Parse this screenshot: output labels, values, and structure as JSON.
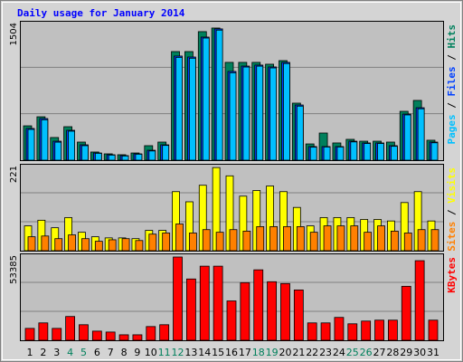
{
  "chart_data": [
    {
      "type": "bar",
      "title": "Daily usage for January 2014",
      "legend_separator": " / ",
      "ylim": [
        0,
        1586
      ],
      "yticks": [
        1504
      ],
      "series": [
        {
          "name": "Hits",
          "color": "#00805c",
          "values": [
            391,
            494,
            258,
            381,
            206,
            93,
            72,
            62,
            82,
            165,
            206,
            1236,
            1236,
            1463,
            1504,
            1113,
            1113,
            1113,
            1092,
            1133,
            649,
            185,
            309,
            196,
            237,
            216,
            216,
            206,
            556,
            680,
            227
          ]
        },
        {
          "name": "Files",
          "color": "#0040ff",
          "values": [
            361,
            474,
            216,
            340,
            175,
            82,
            62,
            52,
            72,
            113,
            175,
            1185,
            1174,
            1401,
            1494,
            1010,
            1071,
            1082,
            1061,
            1113,
            628,
            155,
            155,
            155,
            216,
            196,
            196,
            165,
            525,
            597,
            206
          ]
        },
        {
          "name": "Pages",
          "color": "#00c0ff",
          "values": [
            350,
            460,
            205,
            330,
            165,
            78,
            58,
            48,
            68,
            105,
            168,
            1170,
            1160,
            1390,
            1480,
            995,
            1060,
            1070,
            1050,
            1100,
            615,
            148,
            150,
            150,
            208,
            190,
            190,
            158,
            515,
            585,
            198
          ]
        }
      ]
    },
    {
      "type": "bar",
      "legend_separator": " / ",
      "ylim": [
        0,
        231
      ],
      "yticks": [
        221
      ],
      "series": [
        {
          "name": "Visits",
          "color": "#ffff00",
          "values": [
            66,
            81,
            61,
            88,
            49,
            37,
            34,
            34,
            32,
            54,
            54,
            157,
            130,
            174,
            221,
            199,
            145,
            160,
            172,
            157,
            115,
            66,
            88,
            88,
            88,
            83,
            83,
            79,
            128,
            157,
            79
          ]
        },
        {
          "name": "Sites",
          "color": "#ff8000",
          "values": [
            37,
            39,
            32,
            42,
            32,
            25,
            29,
            32,
            27,
            44,
            47,
            71,
            47,
            56,
            49,
            56,
            52,
            64,
            64,
            64,
            64,
            49,
            66,
            66,
            66,
            49,
            66,
            52,
            47,
            56,
            56
          ]
        }
      ]
    },
    {
      "type": "bar",
      "ylim": [
        0,
        55706
      ],
      "yticks": [
        53385
      ],
      "categories": [
        "1",
        "2",
        "3",
        "4",
        "5",
        "6",
        "7",
        "8",
        "9",
        "10",
        "11",
        "12",
        "13",
        "14",
        "15",
        "16",
        "17",
        "18",
        "19",
        "20",
        "21",
        "22",
        "23",
        "24",
        "25",
        "26",
        "27",
        "28",
        "29",
        "30",
        "31"
      ],
      "category_colors": [
        "#000000",
        "#000000",
        "#000000",
        "#00805c",
        "#00805c",
        "#000000",
        "#000000",
        "#000000",
        "#000000",
        "#000000",
        "#00805c",
        "#00805c",
        "#000000",
        "#000000",
        "#000000",
        "#000000",
        "#000000",
        "#00805c",
        "#00805c",
        "#000000",
        "#000000",
        "#000000",
        "#000000",
        "#000000",
        "#00805c",
        "#00805c",
        "#000000",
        "#000000",
        "#000000",
        "#000000",
        "#000000"
      ],
      "series": [
        {
          "name": "KBytes",
          "color": "#ff0000",
          "values": [
            7627,
            11146,
            7627,
            15253,
            9973,
            5867,
            5280,
            3520,
            3520,
            8800,
            9973,
            53385,
            39305,
            47518,
            47518,
            25226,
            36959,
            45172,
            37545,
            36372,
            32266,
            11146,
            11146,
            14666,
            10560,
            12320,
            12906,
            12906,
            34612,
            51038,
            12906
          ]
        }
      ]
    }
  ]
}
